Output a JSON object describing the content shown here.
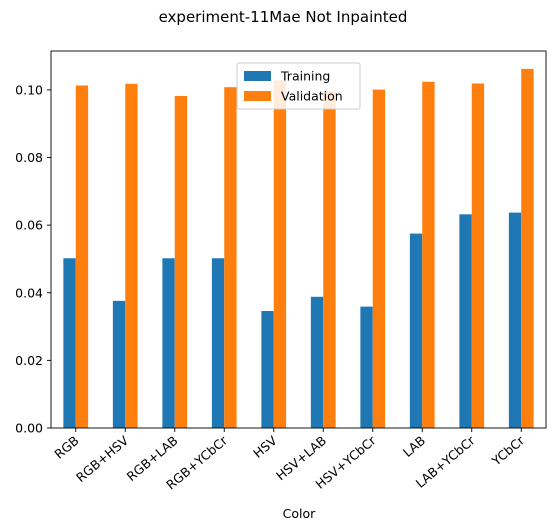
{
  "chart_data": {
    "type": "bar",
    "title": "experiment-11Mae Not Inpainted",
    "xlabel": "Color",
    "ylabel": "",
    "categories": [
      "RGB",
      "RGB+HSV",
      "RGB+LAB",
      "RGB+YCbCr",
      "HSV",
      "HSV+LAB",
      "HSV+YCbCr",
      "LAB",
      "LAB+YCbCr",
      "YCbCr"
    ],
    "series": [
      {
        "name": "Training",
        "color": "#1f77b4",
        "values": [
          0.0502,
          0.0376,
          0.0502,
          0.0502,
          0.0346,
          0.0388,
          0.0359,
          0.0575,
          0.0632,
          0.0637
        ]
      },
      {
        "name": "Validation",
        "color": "#ff7f0e",
        "values": [
          0.1013,
          0.1018,
          0.0982,
          0.1008,
          0.1028,
          0.0998,
          0.1001,
          0.1024,
          0.1019,
          0.1062
        ]
      }
    ],
    "ylim": [
      0,
      0.1115
    ],
    "yticks": [
      "0.00",
      "0.02",
      "0.04",
      "0.06",
      "0.08",
      "0.10"
    ],
    "legend_position": "top-center",
    "grid": false
  }
}
